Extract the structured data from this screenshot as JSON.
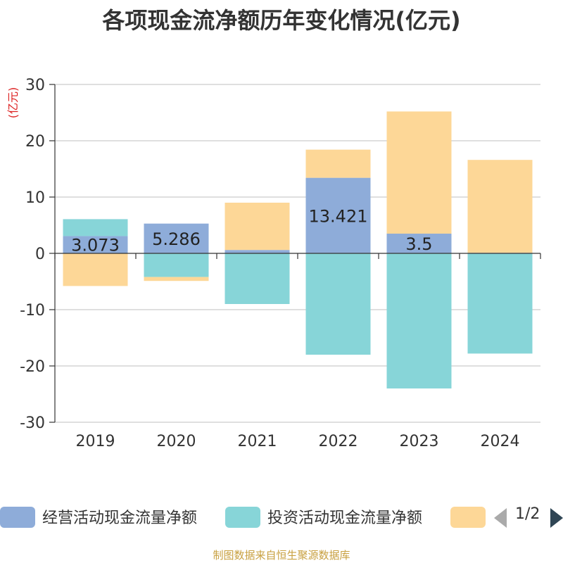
{
  "title": "各项现金流净额历年变化情况(亿元)",
  "source": "制图数据来自恒生聚源数据库",
  "legend": {
    "items": [
      {
        "label": "经营活动现金流量净额",
        "color": "#8eacd9"
      },
      {
        "label": "投资活动现金流量净额",
        "color": "#87d5d8"
      },
      {
        "label": "",
        "color": "#fdd797"
      }
    ],
    "pager": "1/2"
  },
  "chart_data": {
    "type": "bar",
    "stacked": true,
    "title": "各项现金流净额历年变化情况(亿元)",
    "ylabel": "(亿元)",
    "xlabel": "",
    "ylim": [
      -30,
      30
    ],
    "yticks": [
      30,
      20,
      10,
      0,
      -10,
      -20,
      -30
    ],
    "categories": [
      "2019",
      "2020",
      "2021",
      "2022",
      "2023",
      "2024"
    ],
    "series": [
      {
        "name": "经营活动现金流量净额",
        "color": "#8eacd9",
        "values": [
          3.073,
          5.286,
          0.6,
          13.421,
          3.5,
          0.1
        ],
        "labels": [
          "3.073",
          "5.286",
          "",
          "13.421",
          "3.5",
          ""
        ]
      },
      {
        "name": "投资活动现金流量净额",
        "color": "#87d5d8",
        "values": [
          3.0,
          -4.2,
          -9.0,
          -18.0,
          -24.0,
          -17.8
        ],
        "labels": [
          "",
          "",
          "",
          "",
          "",
          ""
        ]
      },
      {
        "name": "",
        "color": "#fdd797",
        "values": [
          -5.8,
          -0.7,
          8.4,
          5.0,
          21.7,
          16.5
        ],
        "labels": [
          "",
          "",
          "",
          "",
          "",
          ""
        ]
      }
    ]
  }
}
